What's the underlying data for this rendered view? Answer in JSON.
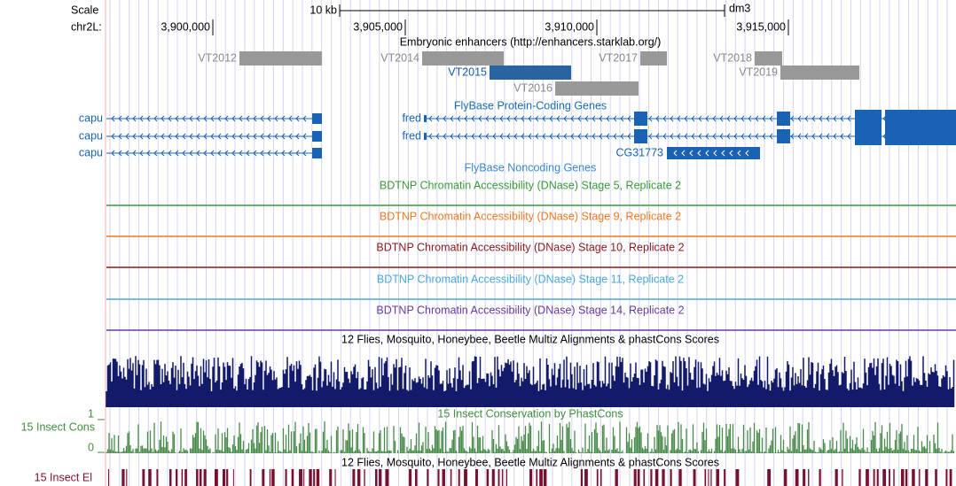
{
  "header": {
    "scale_label": "Scale",
    "scale_bar": "10 kb",
    "assembly": "dm3",
    "chrom": "chr2L:",
    "positions": [
      "3,900,000",
      "3,905,000",
      "3,910,000",
      "3,915,000"
    ]
  },
  "enhancers": {
    "title": "Embryonic enhancers (http://enhancers.starklab.org/)",
    "items": [
      "VT2012",
      "VT2014",
      "VT2015",
      "VT2016",
      "VT2017",
      "VT2018",
      "VT2019"
    ]
  },
  "genes": {
    "title": "FlyBase Protein-Coding Genes",
    "labels": [
      "capu",
      "capu",
      "capu",
      "fred",
      "fred",
      "CG31773"
    ]
  },
  "noncoding": {
    "title": "FlyBase Noncoding Genes"
  },
  "dnase": {
    "titles": [
      "BDTNP Chromatin Accessibility (DNase) Stage 5, Replicate 2",
      "BDTNP Chromatin Accessibility (DNase) Stage 9, Replicate 2",
      "BDTNP Chromatin Accessibility (DNase) Stage 10, Replicate 2",
      "BDTNP Chromatin Accessibility (DNase) Stage 11, Replicate 2",
      "BDTNP Chromatin Accessibility (DNase) Stage 14, Replicate 2"
    ]
  },
  "multiz": {
    "title": "12 Flies, Mosquito, Honeybee, Beetle Multiz Alignments & phastCons Scores"
  },
  "phastcons": {
    "title": "15 Insect Conservation by PhastCons",
    "side_label": "15 Insect Cons",
    "axis_top": "1",
    "axis_bottom": "0"
  },
  "elements": {
    "title": "12 Flies, Mosquito, Honeybee, Beetle Multiz Alignments & phastCons Scores",
    "side_label": "15 Insect El"
  }
}
